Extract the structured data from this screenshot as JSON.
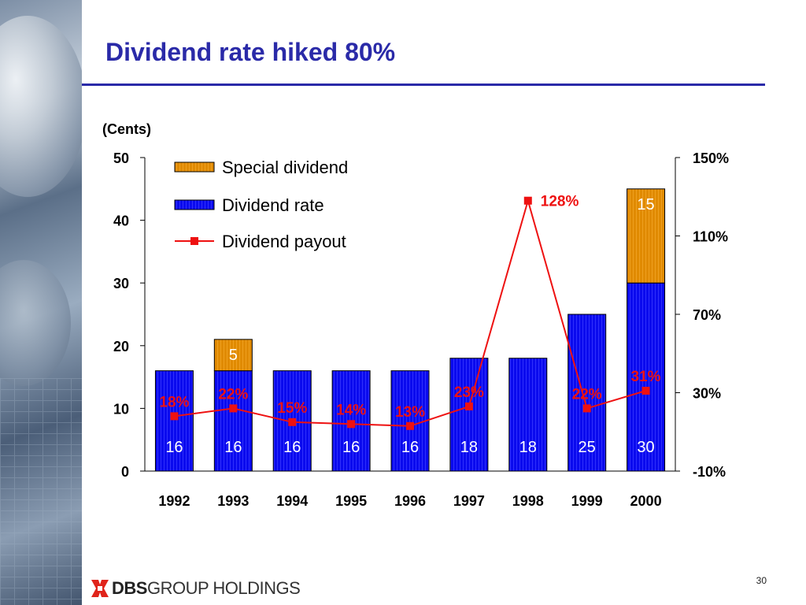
{
  "slide": {
    "title": "Dividend rate hiked 80%",
    "page_number": "30",
    "logo": {
      "bold": "DBS",
      "rest": "GROUP HOLDINGS"
    }
  },
  "colors": {
    "title": "#2a2aa8",
    "dividend_rate": "#0a0aee",
    "special_dividend": "#e08a00",
    "payout_line": "#ee1111",
    "logo_red": "#e0241b"
  },
  "chart_data": {
    "type": "bar",
    "title": "Dividend rate hiked 80%",
    "unit_label": "(Cents)",
    "categories": [
      "1992",
      "1993",
      "1994",
      "1995",
      "1996",
      "1997",
      "1998",
      "1999",
      "2000"
    ],
    "series": [
      {
        "name": "Dividend rate",
        "type": "bar",
        "stacked": true,
        "values": [
          16,
          16,
          16,
          16,
          16,
          18,
          18,
          25,
          30
        ],
        "data_labels": [
          "16",
          "16",
          "16",
          "16",
          "16",
          "18",
          "18",
          "25",
          "30"
        ]
      },
      {
        "name": "Special dividend",
        "type": "bar",
        "stacked": true,
        "values": [
          0,
          5,
          0,
          0,
          0,
          0,
          0,
          0,
          15
        ],
        "data_labels": [
          "",
          "5",
          "",
          "",
          "",
          "",
          "",
          "",
          "15"
        ]
      },
      {
        "name": "Dividend payout",
        "type": "line",
        "axis": "right",
        "values": [
          18,
          22,
          15,
          14,
          13,
          23,
          128,
          22,
          31
        ],
        "data_labels": [
          "18%",
          "22%",
          "15%",
          "14%",
          "13%",
          "23%",
          "128%",
          "22%",
          "31%"
        ]
      }
    ],
    "y_left": {
      "min": 0,
      "max": 50,
      "ticks": [
        "0",
        "10",
        "20",
        "30",
        "40",
        "50"
      ]
    },
    "y_right": {
      "min": -10,
      "max": 150,
      "ticks": [
        "-10%",
        "30%",
        "70%",
        "110%",
        "150%"
      ]
    },
    "legend": [
      "Special dividend",
      "Dividend rate",
      "Dividend payout"
    ],
    "legend_position": "top-left",
    "grid": false
  }
}
